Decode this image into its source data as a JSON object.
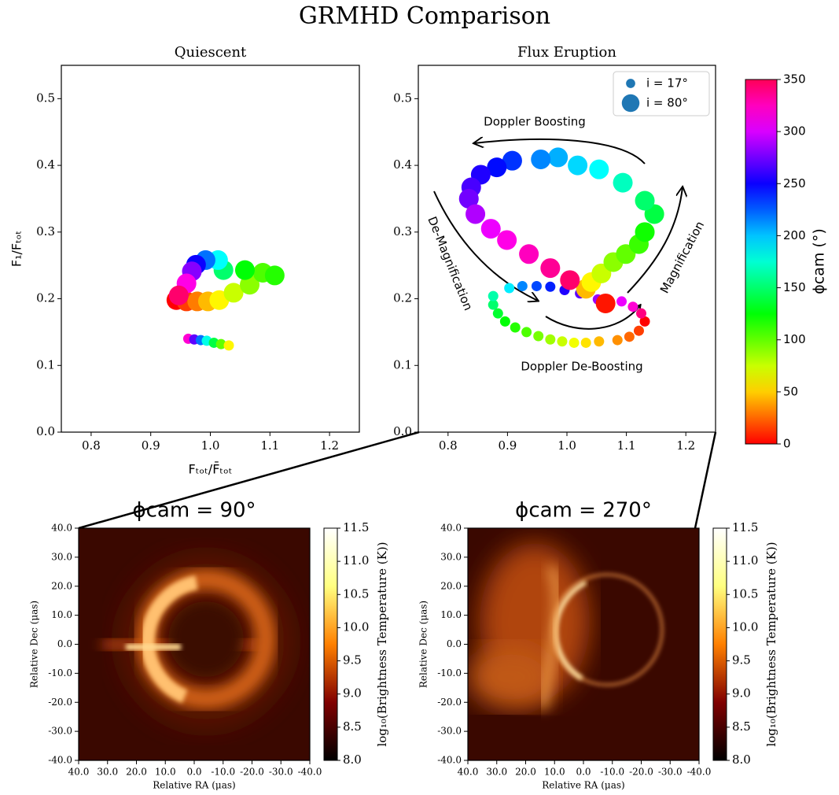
{
  "title": "GRMHD Comparison",
  "colorbar": {
    "label": "ϕcam (°)",
    "lim": [
      0,
      350
    ],
    "ticks": [
      0,
      50,
      100,
      150,
      200,
      250,
      300,
      350
    ]
  },
  "chart_data": [
    {
      "type": "scatter",
      "title": "Quiescent",
      "xlabel": "Fₜₒₜ/F̄ₜₒₜ",
      "ylabel": "F₁/Fₜₒₜ",
      "xlim": [
        0.75,
        1.25
      ],
      "xticks": [
        0.8,
        0.9,
        {
          "value": 1,
          "label": "1.0"
        },
        1.1,
        1.2
      ],
      "ylim": [
        0,
        0.55
      ],
      "yticks": [
        {
          "value": 0,
          "label": "0.0"
        },
        0.1,
        0.2,
        0.3,
        0.4,
        0.5
      ],
      "series": [
        {
          "x": [
            0.963,
            0.973,
            0.984,
            0.994,
            1.006,
            1.018,
            1.031
          ],
          "y": [
            0.14,
            0.139,
            0.138,
            0.137,
            0.134,
            0.132,
            0.13
          ],
          "phi": [
            320,
            270,
            220,
            180,
            140,
            100,
            60
          ]
        },
        {
          "x": [
            0.943,
            0.96,
            0.978,
            0.996,
            1.015,
            1.039,
            1.066,
            1.088,
            1.108,
            1.058,
            1.022,
            1.013,
            0.992,
            0.976,
            0.969,
            0.96,
            0.947
          ],
          "y": [
            0.198,
            0.196,
            0.196,
            0.196,
            0.198,
            0.209,
            0.221,
            0.239,
            0.235,
            0.243,
            0.243,
            0.258,
            0.258,
            0.251,
            0.241,
            0.223,
            0.205
          ],
          "phi": [
            0,
            15,
            30,
            45,
            60,
            75,
            90,
            105,
            115,
            125,
            150,
            185,
            220,
            250,
            280,
            315,
            345
          ]
        }
      ]
    },
    {
      "type": "scatter",
      "title": "Flux Eruption",
      "legend": "upper right",
      "annotations": [
        "Doppler Boosting",
        "De-Magnification",
        "Magnification",
        "Doppler De-Boosting"
      ],
      "xlim": [
        0.75,
        1.25
      ],
      "xticks": [
        0.8,
        0.9,
        {
          "value": 1,
          "label": "1.0"
        },
        1.1,
        1.2
      ],
      "ylim": [
        0,
        0.55
      ],
      "yticks": [
        {
          "value": 0,
          "label": "0.0"
        },
        0.1,
        0.2,
        0.3,
        0.4,
        0.5
      ],
      "series": [
        {
          "name": "i = 17°",
          "x": [
            1.131,
            1.121,
            1.105,
            1.085,
            1.054,
            1.032,
            1.012,
            0.992,
            0.972,
            0.952,
            0.932,
            0.913,
            0.896,
            0.884,
            0.876,
            0.876,
            0.903,
            0.925,
            0.949,
            0.972,
            0.996,
            1.022,
            1.052,
            1.092,
            1.111,
            1.125
          ],
          "y": [
            0.166,
            0.152,
            0.143,
            0.138,
            0.136,
            0.134,
            0.134,
            0.136,
            0.139,
            0.144,
            0.15,
            0.157,
            0.166,
            0.178,
            0.191,
            0.204,
            0.216,
            0.219,
            0.219,
            0.218,
            0.213,
            0.208,
            0.199,
            0.196,
            0.188,
            0.178
          ],
          "phi": [
            0,
            15,
            25,
            35,
            45,
            55,
            65,
            75,
            85,
            95,
            105,
            115,
            125,
            135,
            150,
            165,
            190,
            215,
            230,
            240,
            255,
            270,
            285,
            305,
            320,
            340
          ]
        },
        {
          "name": "i = 80°",
          "x": [
            1.065,
            1.032,
            1.041,
            1.058,
            1.078,
            1.099,
            1.121,
            1.131,
            1.147,
            1.131,
            1.094,
            1.054,
            1.018,
            0.985,
            0.956,
            0.908,
            0.882,
            0.855,
            0.839,
            0.835,
            0.846,
            0.872,
            0.899,
            0.936,
            0.972,
            1.005
          ],
          "y": [
            0.193,
            0.215,
            0.225,
            0.238,
            0.255,
            0.267,
            0.282,
            0.3,
            0.327,
            0.347,
            0.374,
            0.394,
            0.4,
            0.412,
            0.409,
            0.407,
            0.397,
            0.386,
            0.367,
            0.35,
            0.327,
            0.305,
            0.288,
            0.267,
            0.246,
            0.228
          ],
          "phi": [
            5,
            45,
            60,
            75,
            90,
            100,
            110,
            120,
            140,
            150,
            170,
            185,
            195,
            205,
            215,
            235,
            245,
            255,
            265,
            275,
            290,
            305,
            315,
            325,
            335,
            345
          ]
        }
      ]
    },
    {
      "type": "image",
      "title": "ϕcam = 90°",
      "xlabel": "Relative RA (μas)",
      "ylabel": "Relative Dec (μas)",
      "xlim": [
        40,
        -40
      ],
      "xticks": [
        {
          "value": 40,
          "label": "40.0"
        },
        {
          "value": 30,
          "label": "30.0"
        },
        {
          "value": 20,
          "label": "20.0"
        },
        {
          "value": 10,
          "label": "10.0"
        },
        {
          "value": 0,
          "label": "0.0"
        },
        {
          "value": -10,
          "label": "-10.0"
        },
        {
          "value": -20,
          "label": "-20.0"
        },
        {
          "value": -30,
          "label": "-30.0"
        },
        {
          "value": -40,
          "label": "-40.0"
        }
      ],
      "ylim": [
        -40,
        40
      ],
      "yticks": [
        {
          "value": -40,
          "label": "-40.0"
        },
        {
          "value": -30,
          "label": "-30.0"
        },
        {
          "value": -20,
          "label": "-20.0"
        },
        {
          "value": -10,
          "label": "-10.0"
        },
        {
          "value": 0,
          "label": "0.0"
        },
        {
          "value": 10,
          "label": "10.0"
        },
        {
          "value": 20,
          "label": "20.0"
        },
        {
          "value": 30,
          "label": "30.0"
        },
        {
          "value": 40,
          "label": "40.0"
        }
      ],
      "colorbar": {
        "label": "log₁₀(Brightness Temperature (K))",
        "lim": [
          8,
          11.5
        ],
        "ticks": [
          {
            "value": 8,
            "label": "8.0"
          },
          8.5,
          {
            "value": 9,
            "label": "9.0"
          },
          9.5,
          {
            "value": 10,
            "label": "10.0"
          },
          10.5,
          {
            "value": 11,
            "label": "11.0"
          },
          11.5
        ]
      }
    },
    {
      "type": "image",
      "title": "ϕcam = 270°",
      "xlabel": "Relative RA (μas)",
      "ylabel": "Relative Dec (μas)",
      "xlim": [
        40,
        -40
      ],
      "xticks": [
        {
          "value": 40,
          "label": "40.0"
        },
        {
          "value": 30,
          "label": "30.0"
        },
        {
          "value": 20,
          "label": "20.0"
        },
        {
          "value": 10,
          "label": "10.0"
        },
        {
          "value": 0,
          "label": "0.0"
        },
        {
          "value": -10,
          "label": "-10.0"
        },
        {
          "value": -20,
          "label": "-20.0"
        },
        {
          "value": -30,
          "label": "-30.0"
        },
        {
          "value": -40,
          "label": "-40.0"
        }
      ],
      "ylim": [
        -40,
        40
      ],
      "yticks": [
        {
          "value": -40,
          "label": "-40.0"
        },
        {
          "value": -30,
          "label": "-30.0"
        },
        {
          "value": -20,
          "label": "-20.0"
        },
        {
          "value": -10,
          "label": "-10.0"
        },
        {
          "value": 0,
          "label": "0.0"
        },
        {
          "value": 10,
          "label": "10.0"
        },
        {
          "value": 20,
          "label": "20.0"
        },
        {
          "value": 30,
          "label": "30.0"
        },
        {
          "value": 40,
          "label": "40.0"
        }
      ],
      "colorbar": {
        "label": "log₁₀(Brightness Temperature (K))",
        "lim": [
          8,
          11.5
        ],
        "ticks": [
          {
            "value": 8,
            "label": "8.0"
          },
          8.5,
          {
            "value": 9,
            "label": "9.0"
          },
          9.5,
          {
            "value": 10,
            "label": "10.0"
          },
          10.5,
          {
            "value": 11,
            "label": "11.0"
          },
          11.5
        ]
      }
    }
  ]
}
